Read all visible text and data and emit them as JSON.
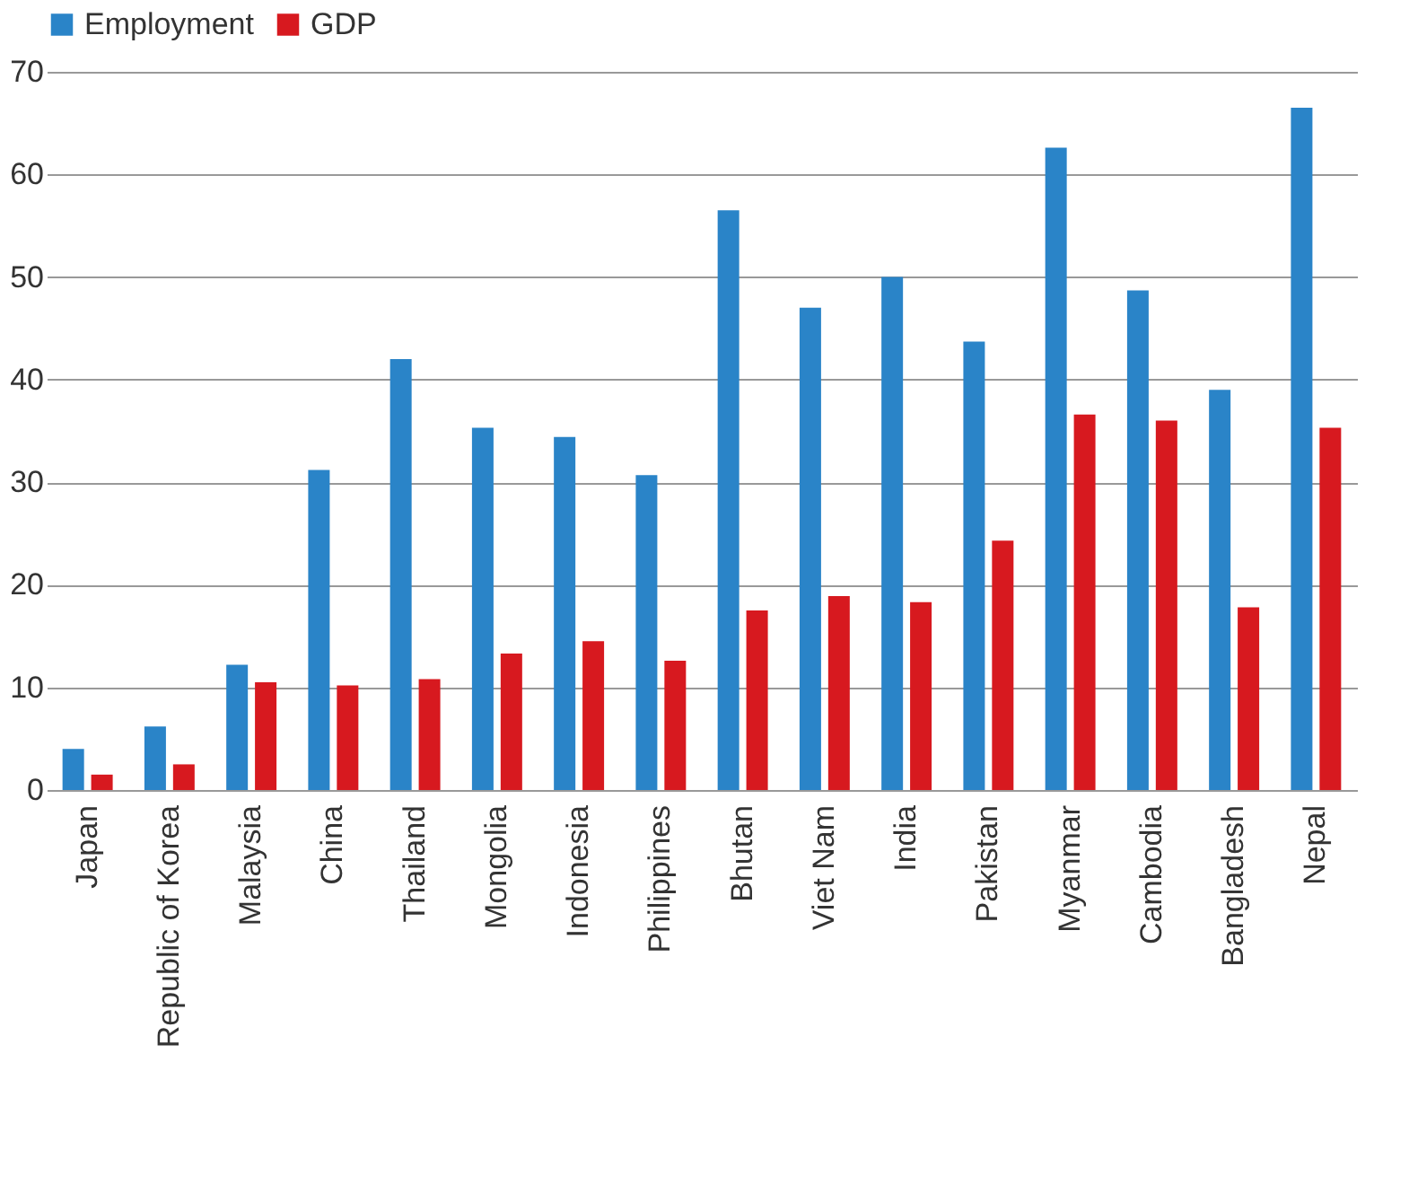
{
  "chart_data": {
    "type": "bar",
    "categories": [
      "Japan",
      "Republic of Korea",
      "Malaysia",
      "China",
      "Thailand",
      "Mongolia",
      "Indonesia",
      "Philippines",
      "Bhutan",
      "Viet Nam",
      "India",
      "Pakistan",
      "Myanmar",
      "Cambodia",
      "Bangladesh",
      "Nepal"
    ],
    "series": [
      {
        "name": "Employment",
        "color": "#2a84c8",
        "values": [
          4.0,
          6.2,
          12.2,
          31.2,
          42.0,
          35.3,
          34.4,
          30.7,
          56.5,
          47.0,
          50.0,
          43.7,
          62.6,
          48.7,
          39.0,
          66.5
        ]
      },
      {
        "name": "GDP",
        "color": "#d7191f",
        "values": [
          1.5,
          2.5,
          10.5,
          10.2,
          10.8,
          13.3,
          14.5,
          12.6,
          17.5,
          18.9,
          18.3,
          24.3,
          36.6,
          36.0,
          17.8,
          35.3
        ]
      }
    ],
    "ylim": [
      0,
      70
    ],
    "yticks": [
      0,
      10,
      20,
      30,
      40,
      50,
      60,
      70
    ],
    "grid": "y",
    "legend": "top"
  }
}
